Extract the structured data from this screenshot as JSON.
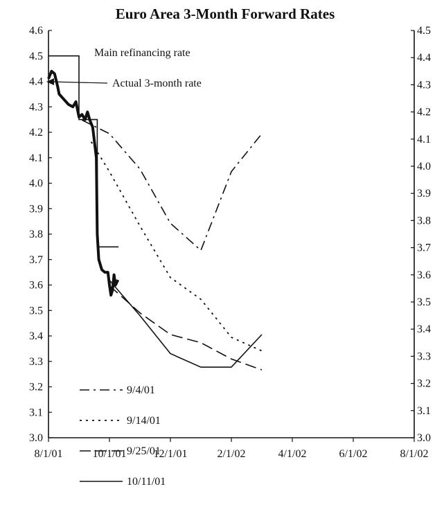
{
  "chart_data": {
    "type": "line",
    "title": "Euro Area 3-Month Forward Rates",
    "x_tick_labels": [
      "8/1/01",
      "10/1/01",
      "12/1/01",
      "2/1/02",
      "4/1/02",
      "6/1/02",
      "8/1/02"
    ],
    "x_axis_range_months": [
      0,
      12
    ],
    "y_left": {
      "ylim": [
        3.0,
        4.6
      ],
      "ticks": [
        "3.0",
        "3.1",
        "3.2",
        "3.3",
        "3.4",
        "3.5",
        "3.6",
        "3.7",
        "3.8",
        "3.9",
        "4.0",
        "4.1",
        "4.2",
        "4.3",
        "4.4",
        "4.5",
        "4.6"
      ]
    },
    "y_right": {
      "ylim": [
        3.0,
        4.5
      ],
      "ticks": [
        "3.0",
        "3.1",
        "3.2",
        "3.3",
        "3.4",
        "3.5",
        "3.6",
        "3.7",
        "3.8",
        "3.9",
        "4.0",
        "4.1",
        "4.2",
        "4.3",
        "4.4",
        "4.5"
      ]
    },
    "annotations": [
      {
        "text": "Main refinancing rate"
      },
      {
        "text": "Actual 3-month rate"
      }
    ],
    "series": [
      {
        "name": "Main refinancing rate",
        "style": "step",
        "axis": "left",
        "points": [
          [
            0,
            4.5
          ],
          [
            1.0,
            4.5
          ],
          [
            1.0,
            4.25
          ],
          [
            1.6,
            4.25
          ],
          [
            1.6,
            3.75
          ],
          [
            2.3,
            3.75
          ]
        ]
      },
      {
        "name": "Actual 3-month rate",
        "style": "thick",
        "axis": "left",
        "points": [
          [
            0,
            4.41
          ],
          [
            0.1,
            4.44
          ],
          [
            0.2,
            4.43
          ],
          [
            0.3,
            4.38
          ],
          [
            0.35,
            4.35
          ],
          [
            0.5,
            4.33
          ],
          [
            0.65,
            4.31
          ],
          [
            0.8,
            4.3
          ],
          [
            0.9,
            4.32
          ],
          [
            1.0,
            4.26
          ],
          [
            1.1,
            4.27
          ],
          [
            1.2,
            4.25
          ],
          [
            1.28,
            4.28
          ],
          [
            1.35,
            4.25
          ],
          [
            1.45,
            4.22
          ],
          [
            1.52,
            4.15
          ],
          [
            1.57,
            4.1
          ],
          [
            1.6,
            3.8
          ],
          [
            1.65,
            3.7
          ],
          [
            1.75,
            3.66
          ],
          [
            1.85,
            3.65
          ],
          [
            1.95,
            3.65
          ],
          [
            2.0,
            3.6
          ],
          [
            2.05,
            3.56
          ],
          [
            2.1,
            3.58
          ],
          [
            2.15,
            3.64
          ],
          [
            2.2,
            3.6
          ],
          [
            2.28,
            3.62
          ]
        ]
      },
      {
        "name": "9/4/01",
        "style": "dashdot",
        "axis": "right",
        "points": [
          [
            1.1,
            4.17
          ],
          [
            2.0,
            4.12
          ],
          [
            3.0,
            3.99
          ],
          [
            4.0,
            3.79
          ],
          [
            5.0,
            3.69
          ],
          [
            6.0,
            3.98
          ],
          [
            7.0,
            4.12
          ]
        ]
      },
      {
        "name": "9/14/01",
        "style": "dotted",
        "axis": "right",
        "points": [
          [
            1.4,
            4.09
          ],
          [
            2.0,
            3.98
          ],
          [
            3.0,
            3.78
          ],
          [
            4.0,
            3.59
          ],
          [
            5.0,
            3.51
          ],
          [
            6.0,
            3.37
          ],
          [
            7.0,
            3.32
          ]
        ]
      },
      {
        "name": "9/25/01",
        "style": "dashed",
        "axis": "right",
        "points": [
          [
            2.0,
            3.56
          ],
          [
            3.0,
            3.46
          ],
          [
            4.0,
            3.38
          ],
          [
            5.0,
            3.35
          ],
          [
            6.0,
            3.29
          ],
          [
            7.0,
            3.25
          ]
        ]
      },
      {
        "name": "10/11/01",
        "style": "solid",
        "axis": "right",
        "points": [
          [
            2.0,
            3.58
          ],
          [
            3.0,
            3.45
          ],
          [
            4.0,
            3.31
          ],
          [
            5.0,
            3.26
          ],
          [
            6.0,
            3.26
          ],
          [
            7.0,
            3.38
          ]
        ]
      }
    ],
    "legend": {
      "placement": "lower-left",
      "entries": [
        "9/4/01",
        "9/14/01",
        "9/25/01",
        "10/11/01"
      ]
    },
    "grid": false
  }
}
